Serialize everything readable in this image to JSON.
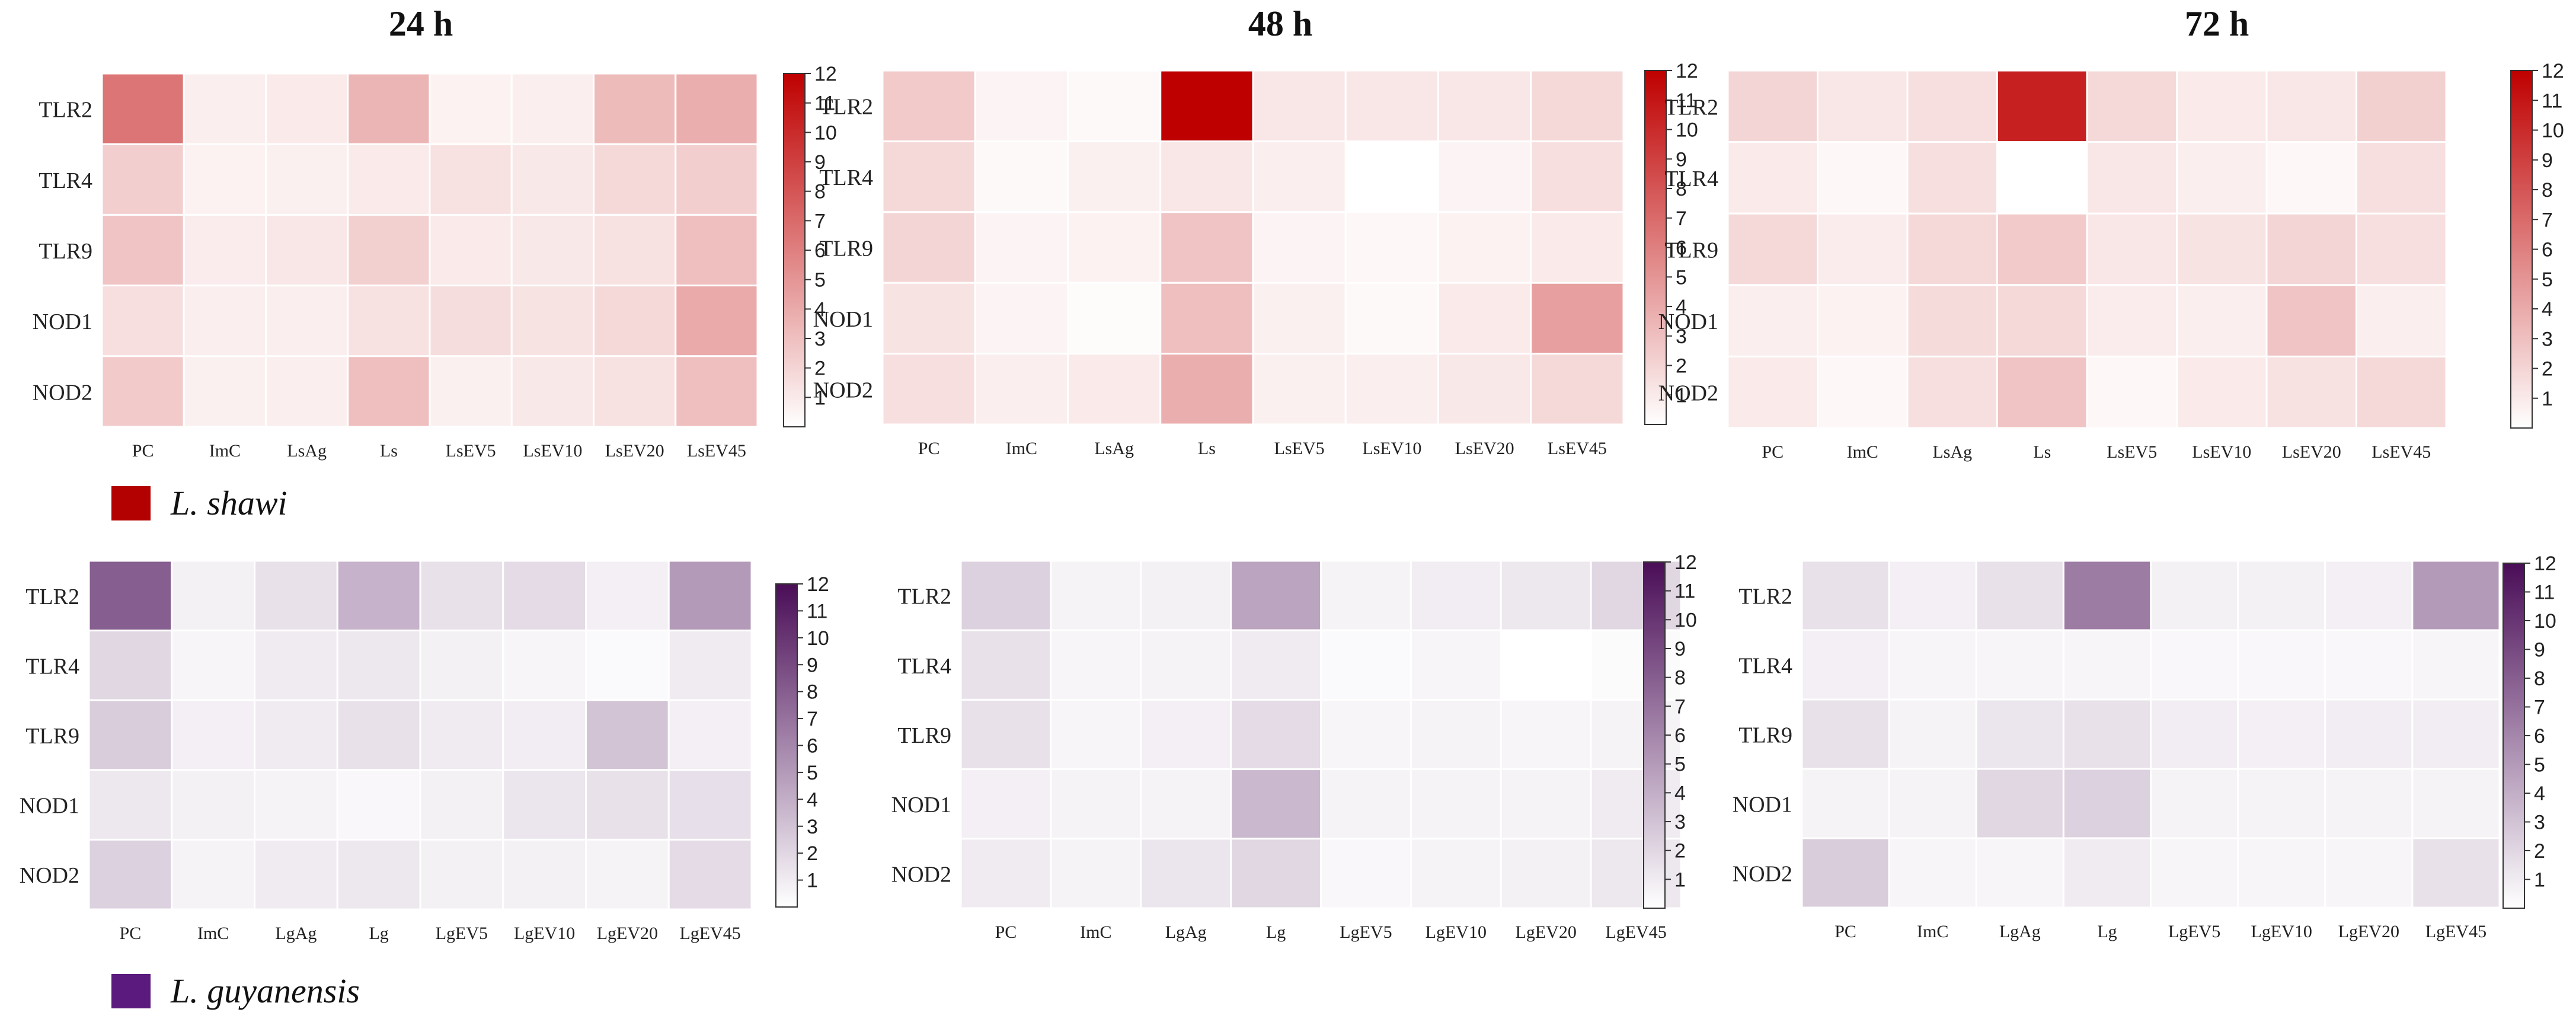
{
  "chart_data": [
    {
      "type": "heatmap",
      "id": "ls24",
      "title": "24 h",
      "species": "L. shawi",
      "palette": "red",
      "rows": [
        "TLR2",
        "TLR4",
        "TLR9",
        "NOD1",
        "NOD2"
      ],
      "columns": [
        "PC",
        "ImC",
        "LsAg",
        "Ls",
        "LsEV5",
        "LsEV10",
        "LsEV20",
        "LsEV45"
      ],
      "values": [
        [
          6.5,
          0.8,
          1.0,
          3.5,
          0.6,
          0.8,
          3.2,
          3.8
        ],
        [
          2.3,
          0.6,
          0.7,
          1.0,
          1.4,
          1.1,
          1.8,
          2.3
        ],
        [
          2.8,
          0.9,
          1.2,
          2.2,
          1.0,
          1.1,
          1.4,
          3.0
        ],
        [
          1.5,
          0.8,
          0.8,
          1.4,
          1.6,
          1.3,
          1.8,
          4.0
        ],
        [
          2.5,
          0.7,
          0.8,
          3.0,
          0.7,
          1.1,
          1.4,
          3.0
        ]
      ],
      "colorbar": {
        "min": 0,
        "max": 12,
        "ticks": [
          1,
          2,
          3,
          4,
          5,
          6,
          7,
          8,
          9,
          10,
          11,
          12
        ]
      }
    },
    {
      "type": "heatmap",
      "id": "ls48",
      "title": "48 h",
      "species": "L. shawi",
      "palette": "red",
      "rows": [
        "TLR2",
        "TLR4",
        "TLR9",
        "NOD1",
        "NOD2"
      ],
      "columns": [
        "PC",
        "ImC",
        "LsAg",
        "Ls",
        "LsEV5",
        "LsEV10",
        "LsEV20",
        "LsEV45"
      ],
      "values": [
        [
          2.5,
          0.5,
          0.3,
          12.0,
          1.2,
          1.2,
          1.2,
          1.8
        ],
        [
          1.8,
          0.3,
          0.7,
          1.2,
          0.8,
          0.0,
          0.5,
          1.5
        ],
        [
          2.0,
          0.5,
          0.6,
          2.8,
          0.5,
          0.4,
          0.6,
          1.0
        ],
        [
          1.3,
          0.5,
          0.2,
          3.0,
          0.7,
          0.3,
          1.0,
          4.5
        ],
        [
          1.5,
          0.8,
          1.0,
          3.8,
          0.7,
          0.8,
          1.1,
          1.8
        ]
      ],
      "colorbar": {
        "min": 0,
        "max": 12,
        "ticks": [
          1,
          2,
          3,
          4,
          5,
          6,
          7,
          8,
          9,
          10,
          11,
          12
        ]
      }
    },
    {
      "type": "heatmap",
      "id": "ls72",
      "title": "72 h",
      "species": "L. shawi",
      "palette": "red",
      "rows": [
        "TLR2",
        "TLR4",
        "TLR9",
        "NOD1",
        "NOD2"
      ],
      "columns": [
        "PC",
        "ImC",
        "LsAg",
        "Ls",
        "LsEV5",
        "LsEV10",
        "LsEV20",
        "LsEV45"
      ],
      "values": [
        [
          2.0,
          1.2,
          1.5,
          10.5,
          1.8,
          1.0,
          1.2,
          2.2
        ],
        [
          1.0,
          0.4,
          1.5,
          0.0,
          1.2,
          0.8,
          0.4,
          1.5
        ],
        [
          1.8,
          0.9,
          1.8,
          2.5,
          1.2,
          1.3,
          2.0,
          1.5
        ],
        [
          0.8,
          0.6,
          1.7,
          1.8,
          0.9,
          0.8,
          2.8,
          0.8
        ],
        [
          1.0,
          0.4,
          1.5,
          2.8,
          0.4,
          1.0,
          1.4,
          1.8
        ]
      ],
      "colorbar": {
        "min": 0,
        "max": 12,
        "ticks": [
          1,
          2,
          3,
          4,
          5,
          6,
          7,
          8,
          9,
          10,
          11,
          12
        ]
      }
    },
    {
      "type": "heatmap",
      "id": "lg24",
      "title": "",
      "species": "L. guyanensis",
      "palette": "purple",
      "rows": [
        "TLR2",
        "TLR4",
        "TLR9",
        "NOD1",
        "NOD2"
      ],
      "columns": [
        "PC",
        "ImC",
        "LgAg",
        "Lg",
        "LgEV5",
        "LgEV10",
        "LgEV20",
        "LgEV45"
      ],
      "values": [
        [
          8.0,
          0.7,
          1.5,
          3.8,
          1.5,
          1.8,
          0.8,
          5.0
        ],
        [
          2.0,
          0.5,
          1.0,
          1.2,
          0.7,
          0.5,
          0.3,
          1.0
        ],
        [
          2.5,
          0.8,
          1.0,
          1.5,
          1.0,
          0.9,
          3.0,
          0.8
        ],
        [
          1.2,
          0.7,
          0.6,
          0.4,
          0.7,
          1.3,
          1.5,
          1.6
        ],
        [
          2.3,
          0.6,
          1.0,
          1.2,
          0.7,
          0.7,
          0.6,
          1.8
        ]
      ],
      "colorbar": {
        "min": 0,
        "max": 12,
        "ticks": [
          1,
          2,
          3,
          4,
          5,
          6,
          7,
          8,
          9,
          10,
          11,
          12
        ]
      }
    },
    {
      "type": "heatmap",
      "id": "lg48",
      "title": "",
      "species": "L. guyanensis",
      "palette": "purple",
      "rows": [
        "TLR2",
        "TLR4",
        "TLR9",
        "NOD1",
        "NOD2"
      ],
      "columns": [
        "PC",
        "ImC",
        "LgAg",
        "Lg",
        "LgEV5",
        "LgEV10",
        "LgEV20",
        "LgEV45"
      ],
      "values": [
        [
          2.3,
          0.6,
          0.7,
          4.5,
          0.6,
          0.9,
          1.2,
          2.0
        ],
        [
          1.5,
          0.5,
          0.6,
          1.0,
          0.3,
          0.5,
          0.0,
          0.2
        ],
        [
          1.5,
          0.5,
          0.8,
          1.8,
          0.5,
          0.6,
          0.5,
          0.6
        ],
        [
          0.8,
          0.6,
          0.6,
          3.5,
          0.6,
          0.6,
          0.6,
          1.0
        ],
        [
          1.0,
          0.6,
          1.3,
          2.0,
          0.4,
          0.6,
          0.7,
          1.2
        ]
      ],
      "colorbar": {
        "min": 0,
        "max": 12,
        "ticks": [
          1,
          2,
          3,
          4,
          5,
          6,
          7,
          8,
          9,
          10,
          11,
          12
        ]
      }
    },
    {
      "type": "heatmap",
      "id": "lg72",
      "title": "",
      "species": "L. guyanensis",
      "palette": "purple",
      "rows": [
        "TLR2",
        "TLR4",
        "TLR9",
        "NOD1",
        "NOD2"
      ],
      "columns": [
        "PC",
        "ImC",
        "LgAg",
        "Lg",
        "LgEV5",
        "LgEV10",
        "LgEV20",
        "LgEV45"
      ],
      "values": [
        [
          1.5,
          0.8,
          1.5,
          6.5,
          0.7,
          0.7,
          0.8,
          5.0
        ],
        [
          0.8,
          0.5,
          0.5,
          0.5,
          0.4,
          0.4,
          0.4,
          0.5
        ],
        [
          1.5,
          0.6,
          1.3,
          1.5,
          0.9,
          0.8,
          0.9,
          0.9
        ],
        [
          0.6,
          0.6,
          2.0,
          2.3,
          0.6,
          0.6,
          0.6,
          0.6
        ],
        [
          2.5,
          0.5,
          0.5,
          1.0,
          0.5,
          0.5,
          0.5,
          1.5
        ]
      ],
      "colorbar": {
        "min": 0,
        "max": 12,
        "ticks": [
          1,
          2,
          3,
          4,
          5,
          6,
          7,
          8,
          9,
          10,
          11,
          12
        ]
      }
    }
  ],
  "legend": [
    {
      "label": "L. shawi",
      "color": "#b30000"
    },
    {
      "label": "L. guyanensis",
      "color": "#5b1a7e"
    }
  ],
  "palettes": {
    "red": {
      "low": "#ffffff",
      "high": "#bf0000"
    },
    "purple": {
      "low": "#ffffff",
      "high": "#4a0d57"
    }
  }
}
